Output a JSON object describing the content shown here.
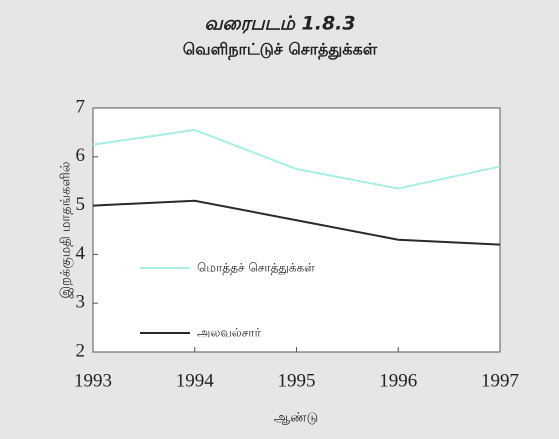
{
  "chart_data": {
    "type": "line",
    "title": "வரைபடம் 1.8.3",
    "subtitle": "வெளிநாட்டுச் சொத்துக்கள்",
    "y_label": "இறக்குமதி மாதங்களில்",
    "x_label": "ஆண்டு",
    "x": [
      1993,
      1994,
      1995,
      1996,
      1997
    ],
    "xlim": [
      1993,
      1997
    ],
    "xticks": [
      1993,
      1994,
      1995,
      1996,
      1997
    ],
    "ylim": [
      2,
      7
    ],
    "yticks": [
      2,
      3,
      4,
      5,
      6,
      7
    ],
    "series": [
      {
        "name": "மொத்தச் சொத்துக்கள்",
        "color": "#a8eee4",
        "values": [
          6.25,
          6.55,
          5.75,
          5.35,
          5.8
        ]
      },
      {
        "name": "அலவல்சார்",
        "color": "#2a2a2a",
        "values": [
          5.0,
          5.1,
          4.7,
          4.3,
          4.2
        ]
      }
    ]
  }
}
